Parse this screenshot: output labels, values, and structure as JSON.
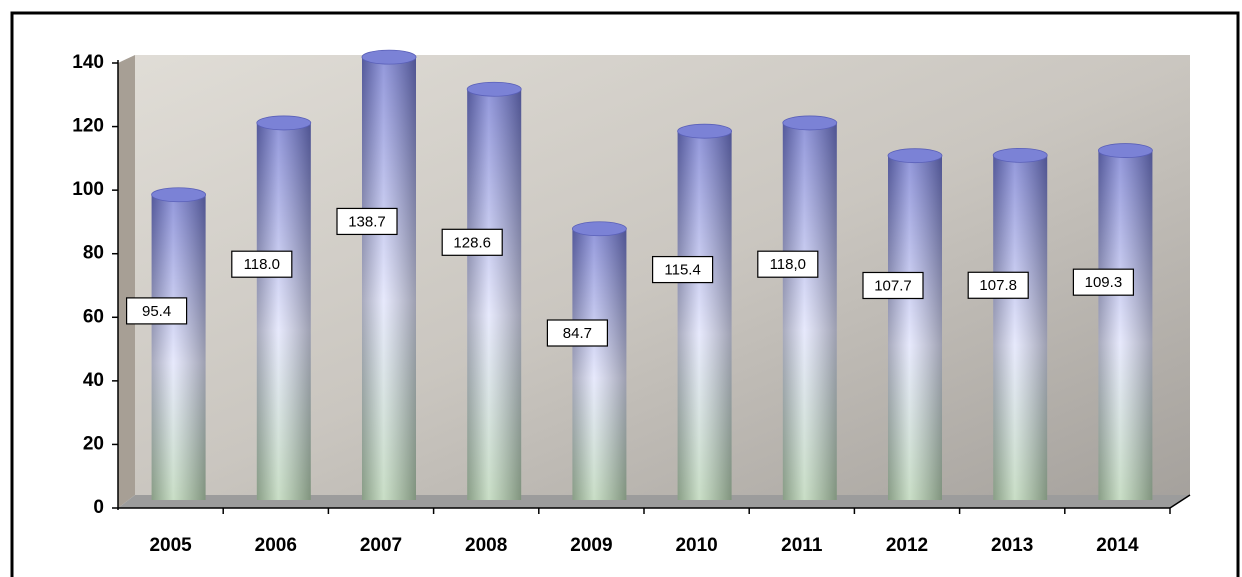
{
  "chart_data": {
    "type": "bar",
    "categories": [
      "2005",
      "2006",
      "2007",
      "2008",
      "2009",
      "2010",
      "2011",
      "2012",
      "2013",
      "2014"
    ],
    "values": [
      95.4,
      118.0,
      138.7,
      128.6,
      84.7,
      115.4,
      118,
      107.7,
      107.8,
      109.3
    ],
    "value_labels": [
      "95.4",
      "118.0",
      "138.7",
      "128.6",
      "84.7",
      "115.4",
      "118,0",
      "107.7",
      "107.8",
      "109.3"
    ],
    "color": "#7b82d6",
    "ylim": [
      0,
      140
    ],
    "yticks": [
      0,
      20,
      40,
      60,
      80,
      100,
      120,
      140
    ]
  }
}
